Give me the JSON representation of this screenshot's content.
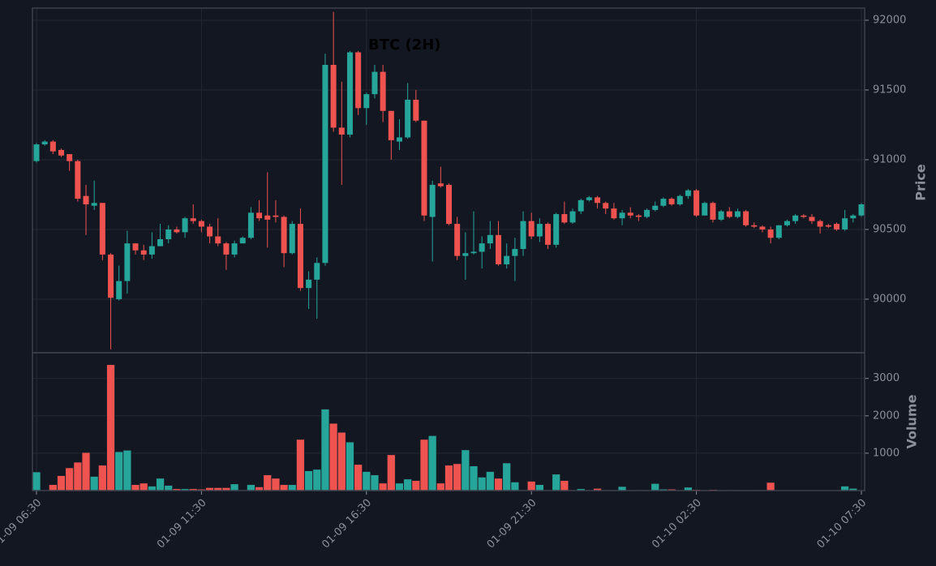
{
  "chart_data": [
    {
      "type": "candlestick",
      "title": "BTC (2H)",
      "ylabel": "Price",
      "up_color": "#26a69a",
      "down_color": "#ef5350",
      "ylim": [
        89616,
        92087
      ],
      "yticks": [
        90000,
        90500,
        91000,
        91500,
        92000
      ],
      "grid": true,
      "open": [
        90990,
        91110,
        91130,
        91070,
        91040,
        90990,
        90740,
        90670,
        90690,
        90320,
        90000,
        90130,
        90400,
        90350,
        90320,
        90380,
        90430,
        90500,
        90480,
        90580,
        90560,
        90520,
        90450,
        90400,
        90320,
        90400,
        90440,
        90620,
        90600,
        90600,
        90590,
        90330,
        90540,
        90080,
        90140,
        90260,
        91680,
        91230,
        91180,
        91770,
        91370,
        91470,
        91630,
        91350,
        91130,
        91160,
        91430,
        91280,
        90590,
        90830,
        90820,
        90540,
        90310,
        90330,
        90340,
        90400,
        90460,
        90250,
        90310,
        90360,
        90560,
        90450,
        90540,
        90390,
        90610,
        90550,
        90630,
        90710,
        90730,
        90690,
        90650,
        90580,
        90620,
        90600,
        90590,
        90640,
        90670,
        90720,
        90680,
        90740,
        90780,
        90600,
        90690,
        90570,
        90630,
        90590,
        90630,
        90530,
        90520,
        90500,
        90440,
        90530,
        90560,
        90600,
        90590,
        90560,
        90530,
        90540,
        90500,
        90580,
        90600
      ],
      "high": [
        91120,
        91140,
        91140,
        91080,
        91040,
        91000,
        90820,
        90850,
        90690,
        90330,
        90240,
        90490,
        90400,
        90390,
        90480,
        90540,
        90530,
        90520,
        90590,
        90680,
        90570,
        90540,
        90580,
        90410,
        90420,
        90450,
        90660,
        90710,
        90910,
        90710,
        90600,
        90560,
        90650,
        90200,
        90300,
        91760,
        92060,
        91560,
        91780,
        91780,
        91480,
        91680,
        91680,
        91350,
        91290,
        91550,
        91500,
        91280,
        90850,
        90950,
        90830,
        90590,
        90480,
        90630,
        90450,
        90560,
        90560,
        90400,
        90440,
        90630,
        90620,
        90580,
        90550,
        90620,
        90700,
        90650,
        90720,
        90740,
        90740,
        90700,
        90690,
        90640,
        90660,
        90610,
        90650,
        90700,
        90730,
        90730,
        90750,
        90790,
        90790,
        90700,
        90700,
        90640,
        90660,
        90650,
        90640,
        90550,
        90530,
        90520,
        90530,
        90570,
        90610,
        90610,
        90610,
        90570,
        90540,
        90550,
        90640,
        90610,
        90690
      ],
      "low": [
        90980,
        91100,
        91040,
        91020,
        90920,
        90700,
        90460,
        90640,
        90280,
        89640,
        89990,
        90040,
        90320,
        90280,
        90290,
        90380,
        90400,
        90470,
        90440,
        90540,
        90480,
        90400,
        90380,
        90210,
        90300,
        90400,
        90430,
        90560,
        90370,
        90550,
        90230,
        90320,
        90060,
        89930,
        89860,
        90240,
        91200,
        90820,
        91160,
        91320,
        91250,
        91440,
        91270,
        91000,
        91070,
        91150,
        91270,
        90560,
        90270,
        90800,
        90530,
        90280,
        90140,
        90320,
        90220,
        90360,
        90240,
        90220,
        90130,
        90310,
        90430,
        90410,
        90360,
        90370,
        90540,
        90540,
        90610,
        90700,
        90650,
        90610,
        90570,
        90530,
        90580,
        90560,
        90580,
        90630,
        90660,
        90670,
        90670,
        90720,
        90590,
        90600,
        90550,
        90560,
        90580,
        90580,
        90520,
        90510,
        90480,
        90400,
        90430,
        90520,
        90540,
        90580,
        90540,
        90470,
        90510,
        90490,
        90490,
        90550,
        90590
      ],
      "close": [
        91110,
        91130,
        91060,
        91030,
        90990,
        90720,
        90680,
        90690,
        90320,
        90010,
        90130,
        90400,
        90350,
        90320,
        90380,
        90430,
        90500,
        90480,
        90580,
        90560,
        90520,
        90450,
        90400,
        90320,
        90400,
        90440,
        90620,
        90580,
        90570,
        90590,
        90330,
        90540,
        90080,
        90140,
        90260,
        91680,
        91230,
        91180,
        91770,
        91370,
        91470,
        91630,
        91350,
        91140,
        91160,
        91430,
        91280,
        90600,
        90820,
        90810,
        90540,
        90310,
        90330,
        90340,
        90400,
        90460,
        90250,
        90310,
        90360,
        90560,
        90450,
        90540,
        90390,
        90610,
        90550,
        90630,
        90710,
        90730,
        90690,
        90650,
        90580,
        90620,
        90600,
        90590,
        90640,
        90670,
        90720,
        90680,
        90740,
        90780,
        90600,
        90690,
        90570,
        90630,
        90590,
        90630,
        90530,
        90520,
        90500,
        90440,
        90530,
        90560,
        90600,
        90590,
        90560,
        90520,
        90520,
        90500,
        90580,
        90600,
        90680
      ]
    },
    {
      "type": "bar",
      "ylabel": "Volume",
      "ylim": [
        0,
        3688
      ],
      "yticks": [
        1000,
        2000,
        3000
      ],
      "grid": true,
      "categories": [
        "01-09 06:30",
        null,
        null,
        null,
        null,
        null,
        null,
        null,
        null,
        null,
        null,
        null,
        null,
        null,
        null,
        null,
        null,
        null,
        null,
        null,
        "01-09 11:30",
        null,
        null,
        null,
        null,
        null,
        null,
        null,
        null,
        null,
        null,
        null,
        null,
        null,
        null,
        null,
        null,
        null,
        null,
        null,
        "01-09 16:30",
        null,
        null,
        null,
        null,
        null,
        null,
        null,
        null,
        null,
        null,
        null,
        null,
        null,
        null,
        null,
        null,
        null,
        null,
        null,
        "01-09 21:30",
        null,
        null,
        null,
        null,
        null,
        null,
        null,
        null,
        null,
        null,
        null,
        null,
        null,
        null,
        null,
        null,
        null,
        null,
        null,
        "01-10 02:30",
        null,
        null,
        null,
        null,
        null,
        null,
        null,
        null,
        null,
        null,
        null,
        null,
        null,
        null,
        null,
        null,
        null,
        null,
        null,
        "01-10 07:30"
      ],
      "values": [
        500,
        5,
        160,
        400,
        610,
        760,
        1020,
        380,
        680,
        3370,
        1040,
        1080,
        160,
        200,
        120,
        330,
        140,
        50,
        50,
        50,
        40,
        80,
        80,
        80,
        180,
        20,
        160,
        100,
        420,
        330,
        160,
        160,
        1370,
        530,
        570,
        2180,
        1800,
        1560,
        1300,
        700,
        510,
        420,
        200,
        960,
        200,
        310,
        270,
        1370,
        1470,
        200,
        680,
        720,
        1090,
        660,
        360,
        510,
        330,
        740,
        230,
        20,
        250,
        160,
        20,
        440,
        270,
        10,
        50,
        10,
        60,
        20,
        10,
        110,
        10,
        20,
        10,
        190,
        40,
        40,
        10,
        90,
        30,
        10,
        30,
        10,
        20,
        10,
        20,
        10,
        10,
        220,
        5,
        5,
        5,
        5,
        5,
        5,
        5,
        5,
        120,
        60,
        10
      ]
    }
  ]
}
